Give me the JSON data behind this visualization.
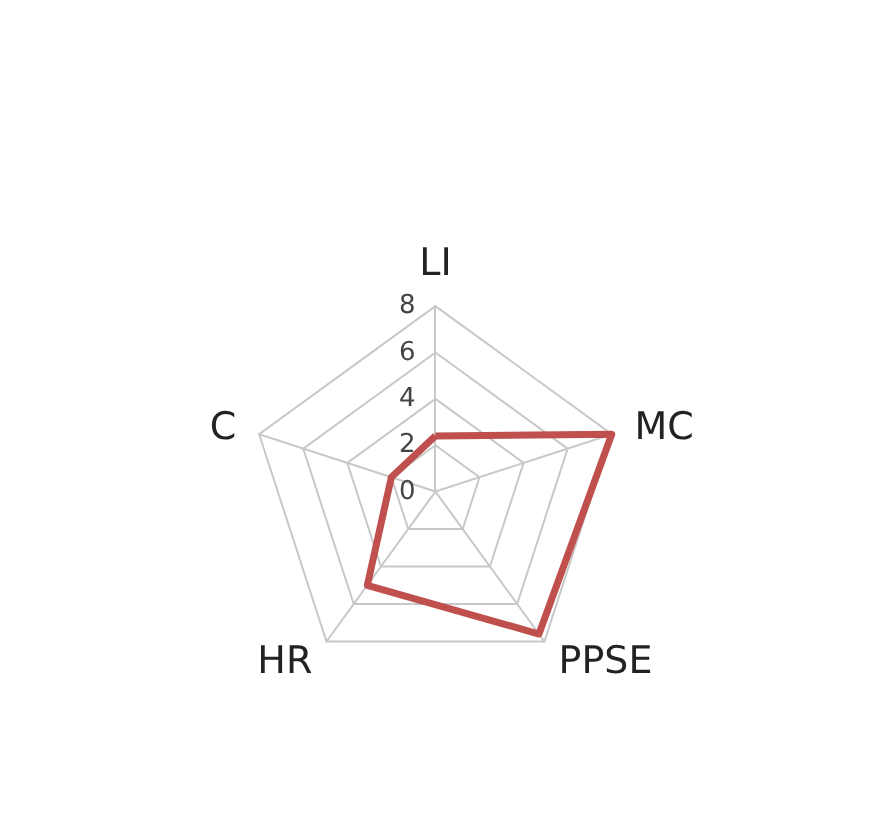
{
  "chart_data": {
    "type": "radar",
    "categories": [
      "LI",
      "MC",
      "PPSE",
      "HR",
      "C"
    ],
    "series": [
      {
        "color": "#c0504d",
        "values": [
          2.4,
          8,
          7.6,
          5,
          2
        ]
      }
    ],
    "ylim": [
      0,
      8
    ],
    "yticks": [
      0,
      2,
      4,
      6,
      8
    ],
    "marker": "none",
    "grid": true
  }
}
